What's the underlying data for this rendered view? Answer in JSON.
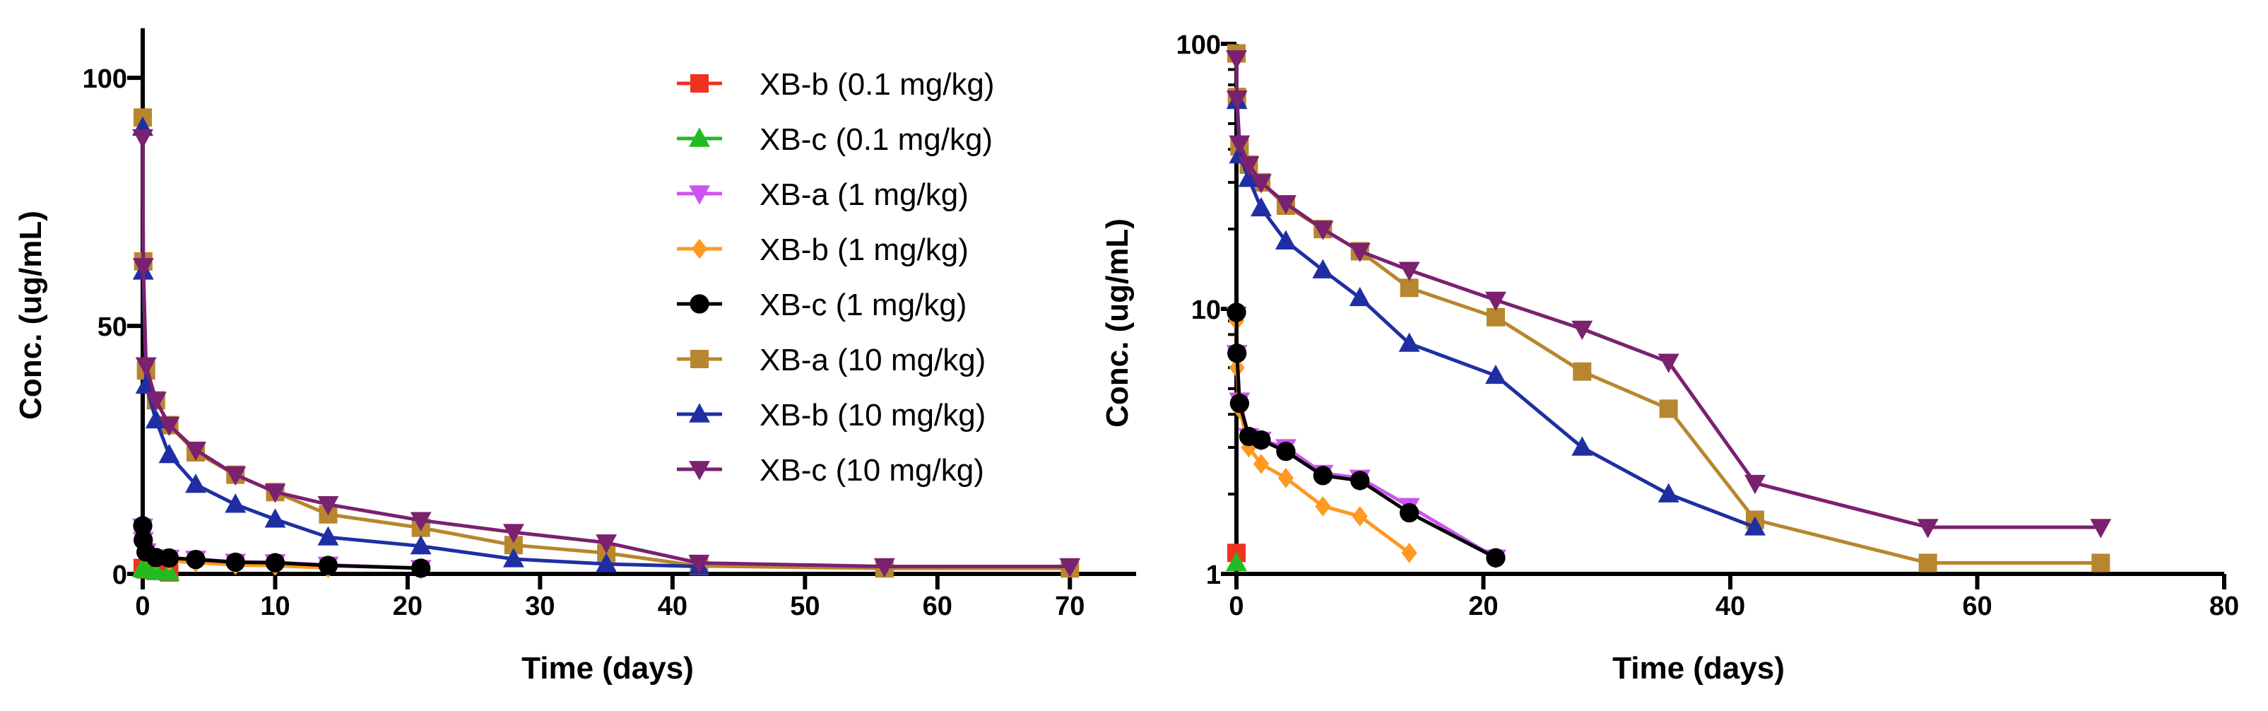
{
  "chart_data": [
    {
      "type": "line",
      "name": "linear-panel",
      "yscale": "linear",
      "xlabel": "Time (days)",
      "ylabel": "Conc. (ug/mL)",
      "xlim": [
        0,
        75
      ],
      "ylim": [
        0,
        110
      ],
      "xticks": [
        0,
        10,
        20,
        30,
        40,
        50,
        60,
        70
      ],
      "yticks": [
        0,
        50,
        100
      ],
      "legend_position": "top-right",
      "series": [
        {
          "name": "XB-b (0.1 mg/kg)",
          "color": "#ee3322",
          "marker": "square",
          "x": [
            0,
            0.04,
            0.25,
            1,
            2
          ],
          "y": [
            1.2,
            1.1,
            0.9,
            0.6,
            0.3
          ]
        },
        {
          "name": "XB-c (0.1 mg/kg)",
          "color": "#22bb22",
          "marker": "triangle-up",
          "x": [
            0,
            0.04,
            0.25,
            1,
            2
          ],
          "y": [
            1.1,
            1.0,
            0.8,
            0.5,
            0.3
          ]
        },
        {
          "name": "XB-a (1 mg/kg)",
          "color": "#cc55ee",
          "marker": "triangle-down",
          "x": [
            0,
            0.04,
            0.25,
            1,
            2,
            4,
            7,
            10,
            14,
            21
          ],
          "y": [
            9.5,
            6.8,
            4.5,
            3.3,
            3.2,
            3.0,
            2.4,
            2.3,
            1.8,
            1.15
          ]
        },
        {
          "name": "XB-b (1 mg/kg)",
          "color": "#ff9922",
          "marker": "diamond",
          "x": [
            0,
            0.04,
            0.25,
            1,
            2,
            4,
            7,
            10,
            14
          ],
          "y": [
            9.0,
            6.0,
            4.2,
            3.0,
            2.6,
            2.3,
            1.8,
            1.65,
            1.2
          ]
        },
        {
          "name": "XB-c (1 mg/kg)",
          "color": "#000000",
          "marker": "circle",
          "x": [
            0,
            0.04,
            0.25,
            1,
            2,
            4,
            7,
            10,
            14,
            21
          ],
          "y": [
            9.7,
            6.8,
            4.4,
            3.3,
            3.2,
            2.9,
            2.35,
            2.25,
            1.7,
            1.15
          ]
        },
        {
          "name": "XB-a (10 mg/kg)",
          "color": "#b8862e",
          "marker": "square",
          "x": [
            0,
            0.04,
            0.25,
            1,
            2,
            4,
            7,
            10,
            14,
            21,
            28,
            35,
            42,
            56,
            70
          ],
          "y": [
            92,
            63,
            41,
            35,
            30,
            24.5,
            20,
            16.5,
            12,
            9.3,
            5.8,
            4.2,
            1.6,
            1.1,
            1.1
          ]
        },
        {
          "name": "XB-b (10 mg/kg)",
          "color": "#1f2fa3",
          "marker": "triangle-up",
          "x": [
            0,
            0.04,
            0.25,
            1,
            2,
            4,
            7,
            10,
            14,
            21,
            28,
            35,
            42
          ],
          "y": [
            90,
            61,
            38,
            31,
            24,
            18,
            14,
            11,
            7.4,
            5.6,
            3.0,
            2.0,
            1.5
          ]
        },
        {
          "name": "XB-c (10 mg/kg)",
          "color": "#7a2170",
          "marker": "triangle-down",
          "x": [
            0,
            0.04,
            0.25,
            1,
            2,
            4,
            7,
            10,
            14,
            21,
            28,
            35,
            42,
            56,
            70
          ],
          "y": [
            88,
            62,
            42,
            35,
            30,
            25,
            20,
            16.5,
            14,
            10.8,
            8.4,
            6.3,
            2.2,
            1.5,
            1.5
          ]
        }
      ]
    },
    {
      "type": "line",
      "name": "log-panel",
      "yscale": "log",
      "xlabel": "Time (days)",
      "ylabel": "Conc. (ug/mL)",
      "xlim": [
        0,
        80
      ],
      "ylim": [
        1,
        100
      ],
      "xticks": [
        0,
        20,
        40,
        60,
        80
      ],
      "yticks": [
        1,
        10,
        100
      ],
      "series": [
        {
          "name": "XB-b (0.1 mg/kg)",
          "color": "#ee3322",
          "marker": "square",
          "x": [
            0
          ],
          "y": [
            1.2
          ]
        },
        {
          "name": "XB-c (0.1 mg/kg)",
          "color": "#22bb22",
          "marker": "triangle-up",
          "x": [
            0
          ],
          "y": [
            1.1
          ]
        },
        {
          "name": "XB-a (1 mg/kg)",
          "color": "#cc55ee",
          "marker": "triangle-down",
          "x": [
            0,
            0.04,
            0.25,
            1,
            2,
            4,
            7,
            10,
            14,
            21
          ],
          "y": [
            9.5,
            6.8,
            4.5,
            3.3,
            3.2,
            3.0,
            2.4,
            2.3,
            1.8,
            1.15
          ]
        },
        {
          "name": "XB-b (1 mg/kg)",
          "color": "#ff9922",
          "marker": "diamond",
          "x": [
            0,
            0.04,
            0.25,
            1,
            2,
            4,
            7,
            10,
            14
          ],
          "y": [
            9.0,
            6.0,
            4.2,
            3.0,
            2.6,
            2.3,
            1.8,
            1.65,
            1.2
          ]
        },
        {
          "name": "XB-c (1 mg/kg)",
          "color": "#000000",
          "marker": "circle",
          "x": [
            0,
            0.04,
            0.25,
            1,
            2,
            4,
            7,
            10,
            14,
            21
          ],
          "y": [
            9.7,
            6.8,
            4.4,
            3.3,
            3.2,
            2.9,
            2.35,
            2.25,
            1.7,
            1.15
          ]
        },
        {
          "name": "XB-a (10 mg/kg)",
          "color": "#b8862e",
          "marker": "square",
          "x": [
            0,
            0.04,
            0.25,
            1,
            2,
            4,
            7,
            10,
            14,
            21,
            28,
            35,
            42,
            56,
            70
          ],
          "y": [
            92,
            63,
            41,
            35,
            30,
            24.5,
            20,
            16.5,
            12,
            9.3,
            5.8,
            4.2,
            1.6,
            1.1,
            1.1
          ]
        },
        {
          "name": "XB-b (10 mg/kg)",
          "color": "#1f2fa3",
          "marker": "triangle-up",
          "x": [
            0.04,
            0.25,
            1,
            2,
            4,
            7,
            10,
            14,
            21,
            28,
            35,
            42
          ],
          "y": [
            61,
            38,
            31,
            24,
            18,
            14,
            11,
            7.4,
            5.6,
            3.0,
            2.0,
            1.5
          ]
        },
        {
          "name": "XB-c (10 mg/kg)",
          "color": "#7a2170",
          "marker": "triangle-down",
          "x": [
            0,
            0.04,
            0.25,
            1,
            2,
            4,
            7,
            10,
            14,
            21,
            28,
            35,
            42,
            56,
            70
          ],
          "y": [
            88,
            62,
            42,
            35,
            30,
            25,
            20,
            16.5,
            14,
            10.8,
            8.4,
            6.3,
            2.2,
            1.5,
            1.5
          ]
        }
      ]
    }
  ]
}
